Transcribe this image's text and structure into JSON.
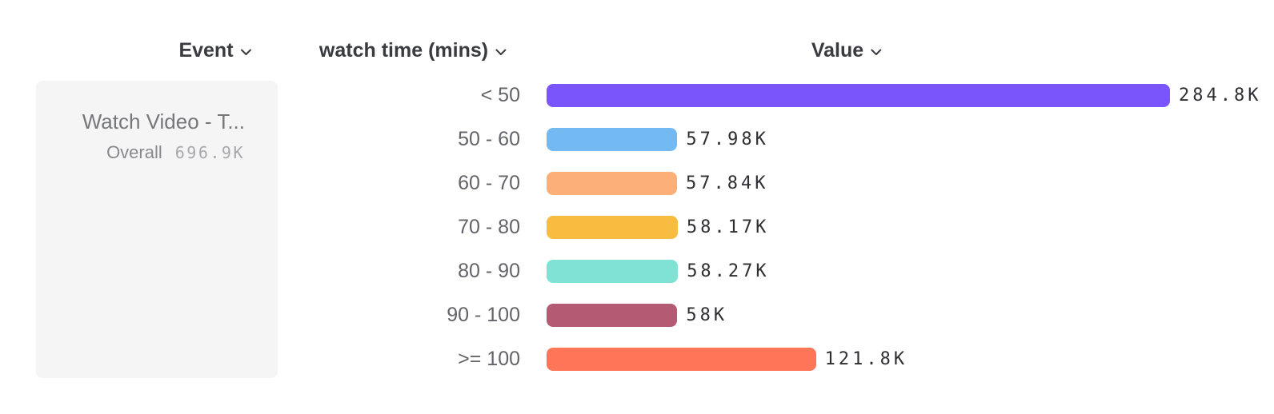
{
  "colors": {
    "background": "#FFFFFF",
    "card_bg": "#F5F5F6",
    "header_text": "#3A3B40",
    "category_text": "#63646A",
    "value_text": "#2E2F33",
    "card_title_text": "#76777B",
    "overall_label_text": "#87888C",
    "overall_value_text": "#A7A8AC"
  },
  "icons": {
    "header_dropdown": "chevron-down"
  },
  "headers": {
    "event": {
      "label": "Event"
    },
    "breakdown": {
      "label": "watch time (mins)"
    },
    "value": {
      "label": "Value"
    }
  },
  "event_card": {
    "title": "Watch Video - T...",
    "overall_label": "Overall",
    "overall_value": "696.9K"
  },
  "chart_data": {
    "type": "bar",
    "orientation": "horizontal",
    "title": "",
    "xlabel": "Value",
    "ylabel": "watch time (mins)",
    "legend": "none",
    "grid": false,
    "categories": [
      "< 50",
      "50 - 60",
      "60 - 70",
      "70 - 80",
      "80 - 90",
      "90 - 100",
      ">= 100"
    ],
    "values": [
      284800,
      57980,
      57840,
      58170,
      58270,
      58000,
      121800
    ],
    "value_labels": [
      "284.8K",
      "57.98K",
      "57.84K",
      "58.17K",
      "58.27K",
      "58K",
      "121.8K"
    ],
    "bar_colors": [
      "#7A55FA",
      "#74BAF2",
      "#FCB077",
      "#F7BC40",
      "#7FE2D5",
      "#B45B73",
      "#FF7557"
    ],
    "overall_total": 696900
  }
}
